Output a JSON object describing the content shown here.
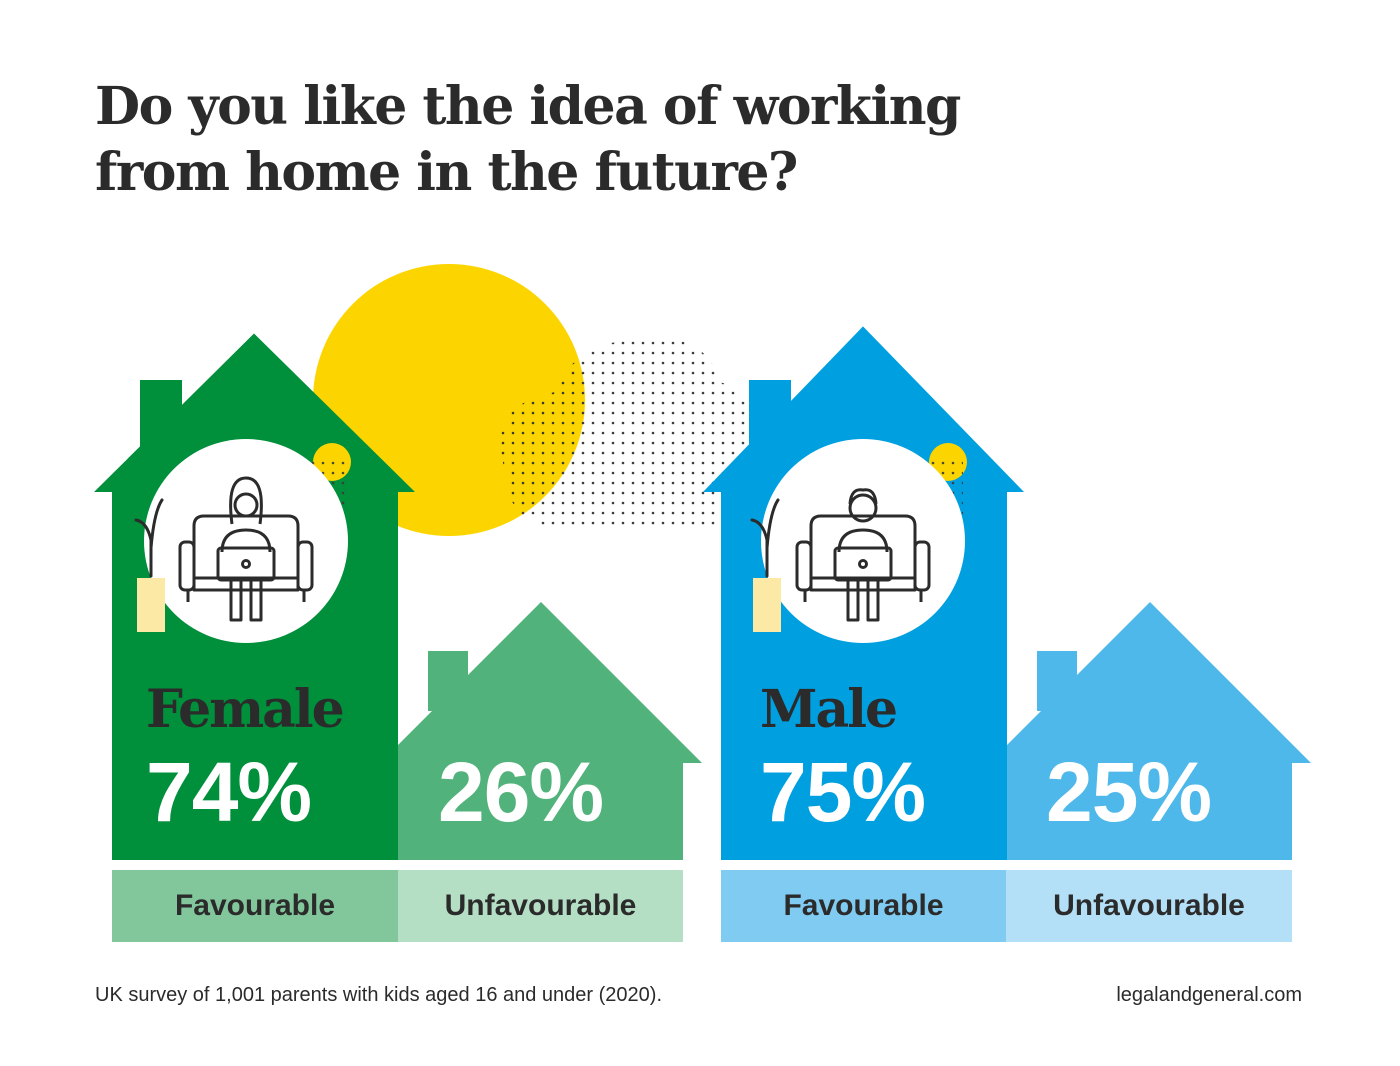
{
  "title_line1": "Do you like the idea of working",
  "title_line2": "from home in the future?",
  "colors": {
    "female_fav": "#008f3a",
    "female_unfav": "#52b27b",
    "female_fav_label": "#82c79c",
    "female_unfav_label": "#b5dfc4",
    "male_fav": "#009fe0",
    "male_unfav": "#4eb8ea",
    "male_fav_label": "#7fcbf1",
    "male_unfav_label": "#b4e0f7",
    "sun": "#fcd500",
    "vase": "#fce9a5"
  },
  "icons": [
    "woman-working-on-laptop-icon",
    "man-working-on-laptop-icon",
    "plant-icon",
    "sun-icon"
  ],
  "chart_data": [
    {
      "type": "bar",
      "group": "Female",
      "categories": [
        "Favourable",
        "Unfavourable"
      ],
      "values": [
        74,
        26
      ],
      "value_labels": [
        "74%",
        "26%"
      ]
    },
    {
      "type": "bar",
      "group": "Male",
      "categories": [
        "Favourable",
        "Unfavourable"
      ],
      "values": [
        75,
        25
      ],
      "value_labels": [
        "75%",
        "25%"
      ]
    }
  ],
  "footnote": "UK survey of 1,001 parents with kids aged 16 and under (2020).",
  "source": "legalandgeneral.com"
}
